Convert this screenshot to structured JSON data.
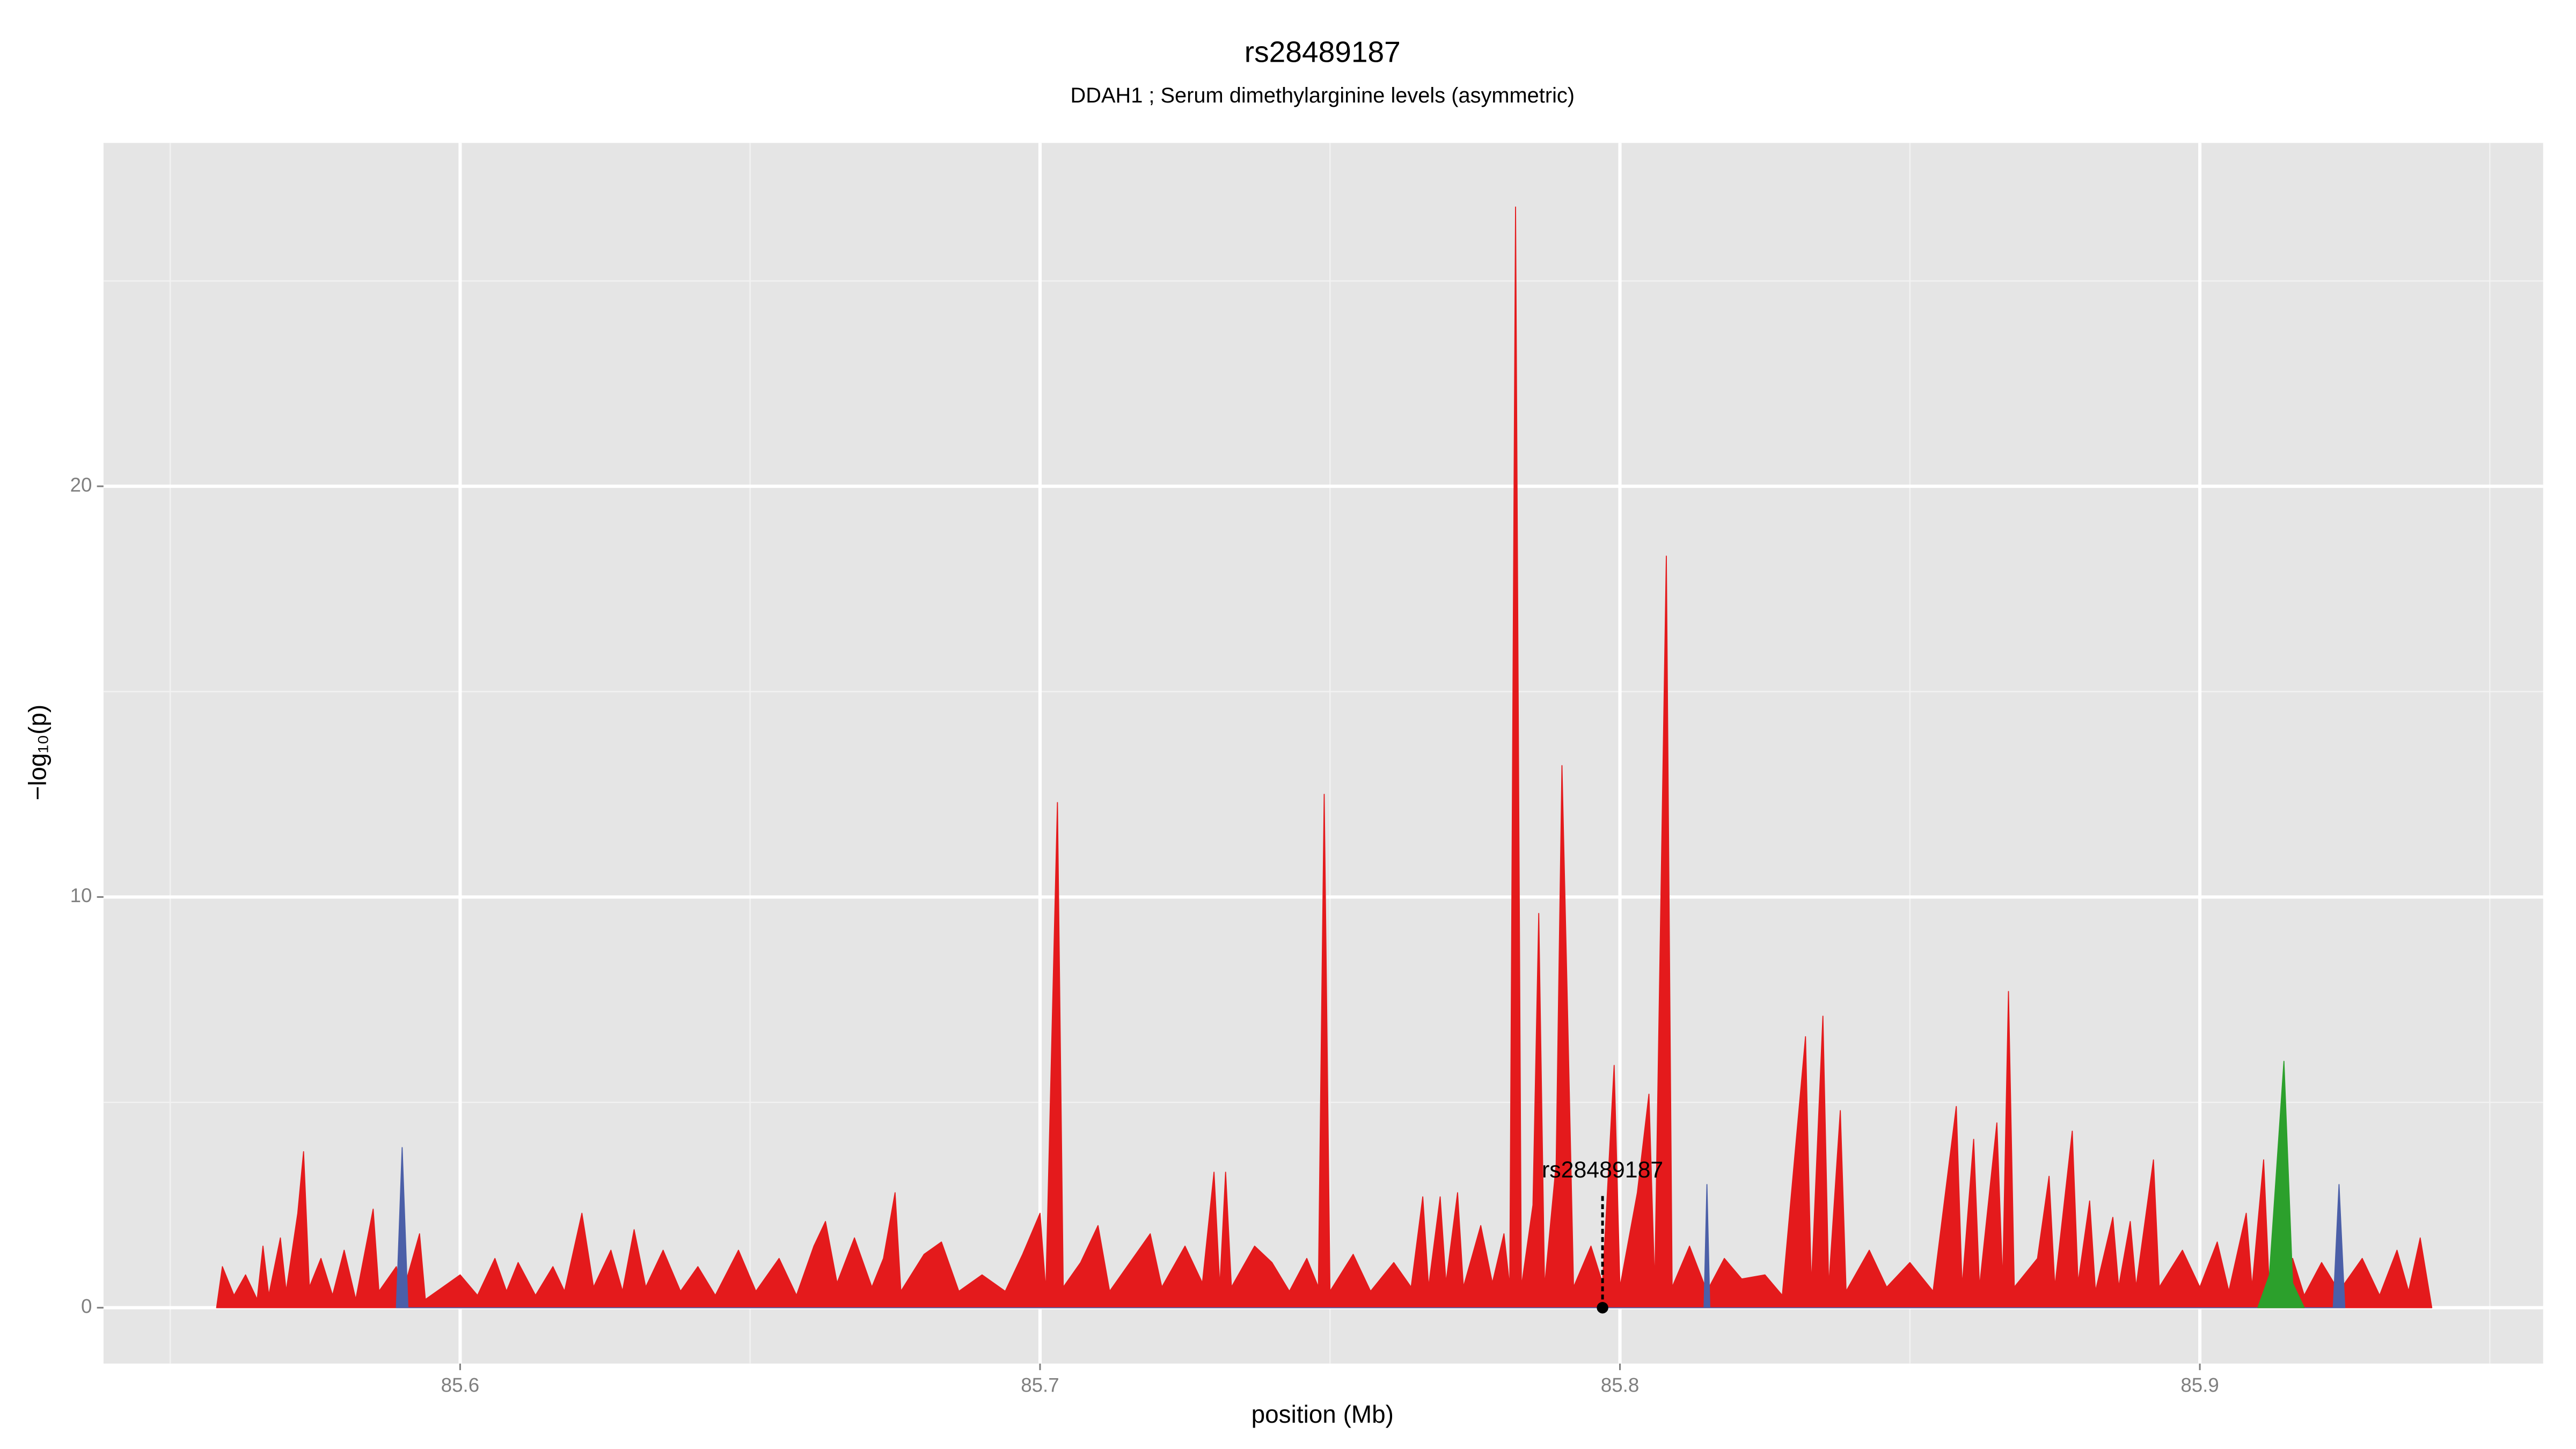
{
  "chart_data": {
    "type": "area",
    "title": "rs28489187",
    "subtitle": "DDAH1 ; Serum dimethylarginine levels (asymmetric)",
    "x_label": "position (Mb)",
    "y_label": "−log₁₀(p)",
    "xlim": [
      85.5385,
      85.9592
    ],
    "ylim": [
      -1.36,
      28.36
    ],
    "xticks": [
      85.6,
      85.7,
      85.8,
      85.9
    ],
    "yticks": [
      0,
      10,
      20
    ],
    "x_minor_ticks": [
      85.55,
      85.65,
      85.75,
      85.85,
      85.95
    ],
    "y_minor_ticks": [
      5,
      15,
      25
    ],
    "grid": true,
    "series": [
      {
        "color": "#e41a1c",
        "x": [
          85.558,
          85.559,
          85.561,
          85.563,
          85.565,
          85.566,
          85.567,
          85.569,
          85.57,
          85.572,
          85.573,
          85.574,
          85.576,
          85.578,
          85.58,
          85.582,
          85.585,
          85.586,
          85.589,
          85.59,
          85.593,
          85.594,
          85.598,
          85.6,
          85.603,
          85.606,
          85.608,
          85.61,
          85.613,
          85.616,
          85.618,
          85.621,
          85.623,
          85.626,
          85.628,
          85.63,
          85.632,
          85.635,
          85.638,
          85.641,
          85.644,
          85.648,
          85.651,
          85.655,
          85.658,
          85.661,
          85.663,
          85.665,
          85.668,
          85.671,
          85.673,
          85.675,
          85.676,
          85.68,
          85.683,
          85.686,
          85.69,
          85.694,
          85.697,
          85.7,
          85.701,
          85.703,
          85.704,
          85.707,
          85.71,
          85.712,
          85.716,
          85.719,
          85.721,
          85.725,
          85.728,
          85.73,
          85.731,
          85.732,
          85.733,
          85.737,
          85.74,
          85.743,
          85.746,
          85.748,
          85.749,
          85.75,
          85.754,
          85.757,
          85.761,
          85.764,
          85.766,
          85.767,
          85.769,
          85.77,
          85.772,
          85.773,
          85.776,
          85.778,
          85.78,
          85.781,
          85.782,
          85.783,
          85.785,
          85.786,
          85.787,
          85.789,
          85.79,
          85.791,
          85.792,
          85.795,
          85.797,
          85.799,
          85.8,
          85.803,
          85.805,
          85.806,
          85.808,
          85.809,
          85.812,
          85.815,
          85.818,
          85.821,
          85.825,
          85.828,
          85.832,
          85.833,
          85.835,
          85.836,
          85.838,
          85.839,
          85.843,
          85.846,
          85.85,
          85.854,
          85.858,
          85.859,
          85.861,
          85.862,
          85.865,
          85.866,
          85.867,
          85.868,
          85.872,
          85.874,
          85.875,
          85.878,
          85.879,
          85.881,
          85.882,
          85.885,
          85.886,
          85.888,
          85.889,
          85.892,
          85.893,
          85.897,
          85.9,
          85.903,
          85.905,
          85.908,
          85.909,
          85.911,
          85.912,
          85.916,
          85.918,
          85.921,
          85.924,
          85.928,
          85.931,
          85.934,
          85.936,
          85.938,
          85.94
        ],
        "values": [
          0,
          1.0,
          0.3,
          0.8,
          0.2,
          1.5,
          0.3,
          1.7,
          0.4,
          2.3,
          3.8,
          0.5,
          1.2,
          0.3,
          1.4,
          0.2,
          2.4,
          0.4,
          1.0,
          0.3,
          1.8,
          0.2,
          0.6,
          0.8,
          0.3,
          1.2,
          0.4,
          1.1,
          0.3,
          1.0,
          0.4,
          2.3,
          0.5,
          1.4,
          0.4,
          1.9,
          0.5,
          1.4,
          0.4,
          1.0,
          0.3,
          1.4,
          0.4,
          1.2,
          0.3,
          1.5,
          2.1,
          0.6,
          1.7,
          0.5,
          1.2,
          2.8,
          0.4,
          1.3,
          1.6,
          0.4,
          0.8,
          0.4,
          1.3,
          2.3,
          0.4,
          12.3,
          0.5,
          1.1,
          2.0,
          0.4,
          1.2,
          1.8,
          0.5,
          1.5,
          0.6,
          3.3,
          0.5,
          3.3,
          0.5,
          1.5,
          1.1,
          0.4,
          1.2,
          0.5,
          12.5,
          0.4,
          1.3,
          0.4,
          1.1,
          0.5,
          2.7,
          0.5,
          2.7,
          0.6,
          2.8,
          0.5,
          2.0,
          0.6,
          1.8,
          0.5,
          26.8,
          0.5,
          2.5,
          9.6,
          0.5,
          3.5,
          13.2,
          7.0,
          0.5,
          1.5,
          0.6,
          5.9,
          0.5,
          2.8,
          5.2,
          0.5,
          18.3,
          0.5,
          1.5,
          0.4,
          1.2,
          0.7,
          0.8,
          0.3,
          6.6,
          0.5,
          7.1,
          0.5,
          4.8,
          0.4,
          1.4,
          0.5,
          1.1,
          0.4,
          4.9,
          0.5,
          4.1,
          0.5,
          4.5,
          0.6,
          7.7,
          0.5,
          1.2,
          3.2,
          0.5,
          4.3,
          0.6,
          2.6,
          0.4,
          2.2,
          0.5,
          2.1,
          0.5,
          3.6,
          0.5,
          1.4,
          0.5,
          1.6,
          0.4,
          2.3,
          0.5,
          3.6,
          0.4,
          1.2,
          0.3,
          1.1,
          0.4,
          1.2,
          0.3,
          1.4,
          0.4,
          1.7,
          0
        ]
      },
      {
        "color": "#4b5fa8",
        "x": [
          85.589,
          85.59,
          85.591,
          85.8145,
          85.815,
          85.8155,
          85.923,
          85.924,
          85.925
        ],
        "values": [
          0,
          3.9,
          0,
          0,
          3.0,
          0,
          0,
          3.0,
          0
        ]
      },
      {
        "color": "#2ca02c",
        "x": [
          85.91,
          85.912,
          85.9145,
          85.916,
          85.918
        ],
        "values": [
          0,
          0.8,
          6.0,
          0.6,
          0
        ]
      }
    ],
    "annotation": {
      "text": "rs28489187",
      "x": 85.797,
      "y": 0
    }
  }
}
